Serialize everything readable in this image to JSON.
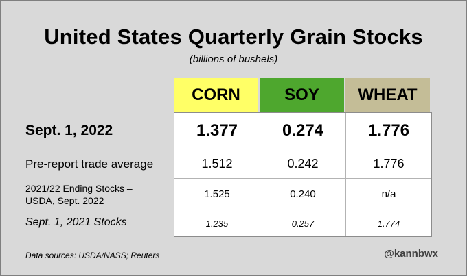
{
  "chart_data": {
    "type": "table",
    "title": "United States Quarterly Grain Stocks",
    "subtitle": "(billions of bushels)",
    "columns": [
      {
        "name": "CORN",
        "color": "#ffff66"
      },
      {
        "name": "SOY",
        "color": "#4ea72e"
      },
      {
        "name": "WHEAT",
        "color": "#c4bd97"
      }
    ],
    "rows": [
      {
        "label": "Sept. 1, 2022",
        "values": [
          "1.377",
          "0.274",
          "1.776"
        ]
      },
      {
        "label": "Pre-report trade average",
        "values": [
          "1.512",
          "0.242",
          "1.776"
        ]
      },
      {
        "label_line1": "2021/22 Ending Stocks –",
        "label_line2": "USDA, Sept. 2022",
        "values": [
          "1.525",
          "0.240",
          "n/a"
        ]
      },
      {
        "label": "Sept. 1, 2021 Stocks",
        "values": [
          "1.235",
          "0.257",
          "1.774"
        ]
      }
    ]
  },
  "footer": {
    "source": "Data sources: USDA/NASS; Reuters",
    "handle": "@kannbwx"
  }
}
